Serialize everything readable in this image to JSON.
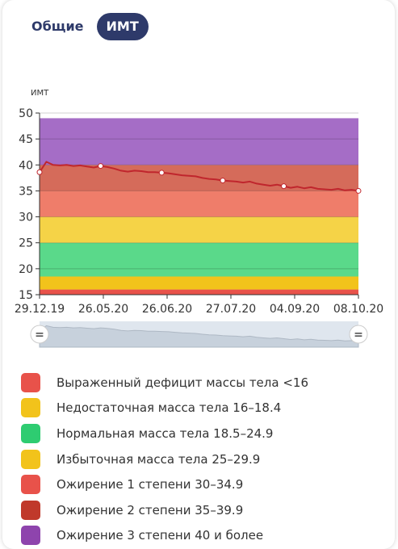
{
  "tabs": [
    {
      "label": "Общие",
      "active": false
    },
    {
      "label": "ИМТ",
      "active": true
    }
  ],
  "slider_handles": [
    {
      "icon": "drag-handle-icon",
      "glyph": "="
    },
    {
      "icon": "drag-handle-icon",
      "glyph": "="
    }
  ],
  "chart_data": {
    "type": "line",
    "ylabel": "ИМТ",
    "ylim": [
      15,
      50
    ],
    "yticks": [
      15,
      20,
      25,
      30,
      35,
      40,
      45,
      50
    ],
    "xticks": [
      "29.12.19",
      "26.05.20",
      "26.06.20",
      "27.07.20",
      "04.09.20",
      "08.10.20"
    ],
    "bands": [
      {
        "from": 15,
        "to": 16,
        "color": "#e8524a"
      },
      {
        "from": 16,
        "to": 18.5,
        "color": "#f2c31b"
      },
      {
        "from": 18.5,
        "to": 25,
        "color": "#5ad98a"
      },
      {
        "from": 25,
        "to": 30,
        "color": "#f5d347"
      },
      {
        "from": 30,
        "to": 35,
        "color": "#ef7d6a"
      },
      {
        "from": 35,
        "to": 40,
        "color": "#d56b5a"
      },
      {
        "from": 40,
        "to": 49,
        "color": "#a56dc6"
      }
    ],
    "series": [
      {
        "line_color": "#c0262d",
        "values": [
          38.6,
          40.6,
          40.0,
          39.9,
          40.0,
          39.8,
          39.9,
          39.7,
          39.5,
          39.8,
          39.6,
          39.3,
          38.9,
          38.7,
          38.9,
          38.8,
          38.6,
          38.6,
          38.5,
          38.4,
          38.2,
          38.0,
          37.9,
          37.8,
          37.5,
          37.3,
          37.2,
          37.0,
          36.9,
          36.8,
          36.6,
          36.8,
          36.4,
          36.2,
          36.0,
          36.2,
          35.9,
          35.6,
          35.8,
          35.5,
          35.7,
          35.4,
          35.3,
          35.2,
          35.4,
          35.1,
          35.2,
          35.0
        ],
        "markers": [
          0,
          9,
          18,
          27,
          36,
          47
        ]
      }
    ]
  },
  "legend": [
    {
      "label": "Выраженный дефицит массы тела <16",
      "color": "#e8524a"
    },
    {
      "label": "Недостаточная масса тела 16–18.4",
      "color": "#f2c31b"
    },
    {
      "label": "Нормальная масса тела 18.5–24.9",
      "color": "#2ecc71"
    },
    {
      "label": "Избыточная масса тела 25–29.9",
      "color": "#f2c31b"
    },
    {
      "label": "Ожирение 1 степени 30–34.9",
      "color": "#e8524a"
    },
    {
      "label": "Ожирение 2 степени 35–39.9",
      "color": "#c0392b"
    },
    {
      "label": "Ожирение 3 степени 40 и более",
      "color": "#8e44ad"
    }
  ]
}
